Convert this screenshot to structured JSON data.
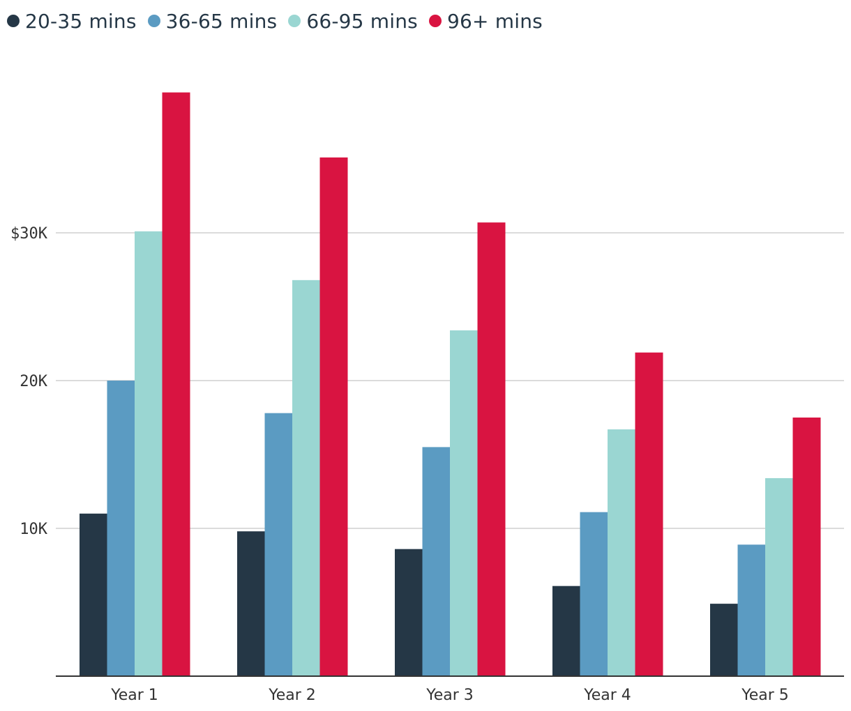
{
  "chart_data": {
    "type": "bar",
    "title": "",
    "xlabel": "",
    "ylabel": "",
    "categories": [
      "Year 1",
      "Year 2",
      "Year 3",
      "Year 4",
      "Year 5"
    ],
    "series": [
      {
        "name": "20-35 mins",
        "color": "#253746",
        "values": [
          11000,
          9800,
          8600,
          6100,
          4900
        ]
      },
      {
        "name": "36-65 mins",
        "color": "#5b9bc2",
        "values": [
          20000,
          17800,
          15500,
          11100,
          8900
        ]
      },
      {
        "name": "66-95 mins",
        "color": "#9ad6d2",
        "values": [
          30100,
          26800,
          23400,
          16700,
          13400
        ]
      },
      {
        "name": "96+ mins",
        "color": "#d91441",
        "values": [
          39500,
          35100,
          30700,
          21900,
          17500
        ]
      }
    ],
    "ylim": [
      0,
      40000
    ],
    "yticks": [
      {
        "value": 10000,
        "label": "10K"
      },
      {
        "value": 20000,
        "label": "20K"
      },
      {
        "value": 30000,
        "label": "$30K"
      }
    ],
    "grid": true,
    "legend": "top-left"
  }
}
